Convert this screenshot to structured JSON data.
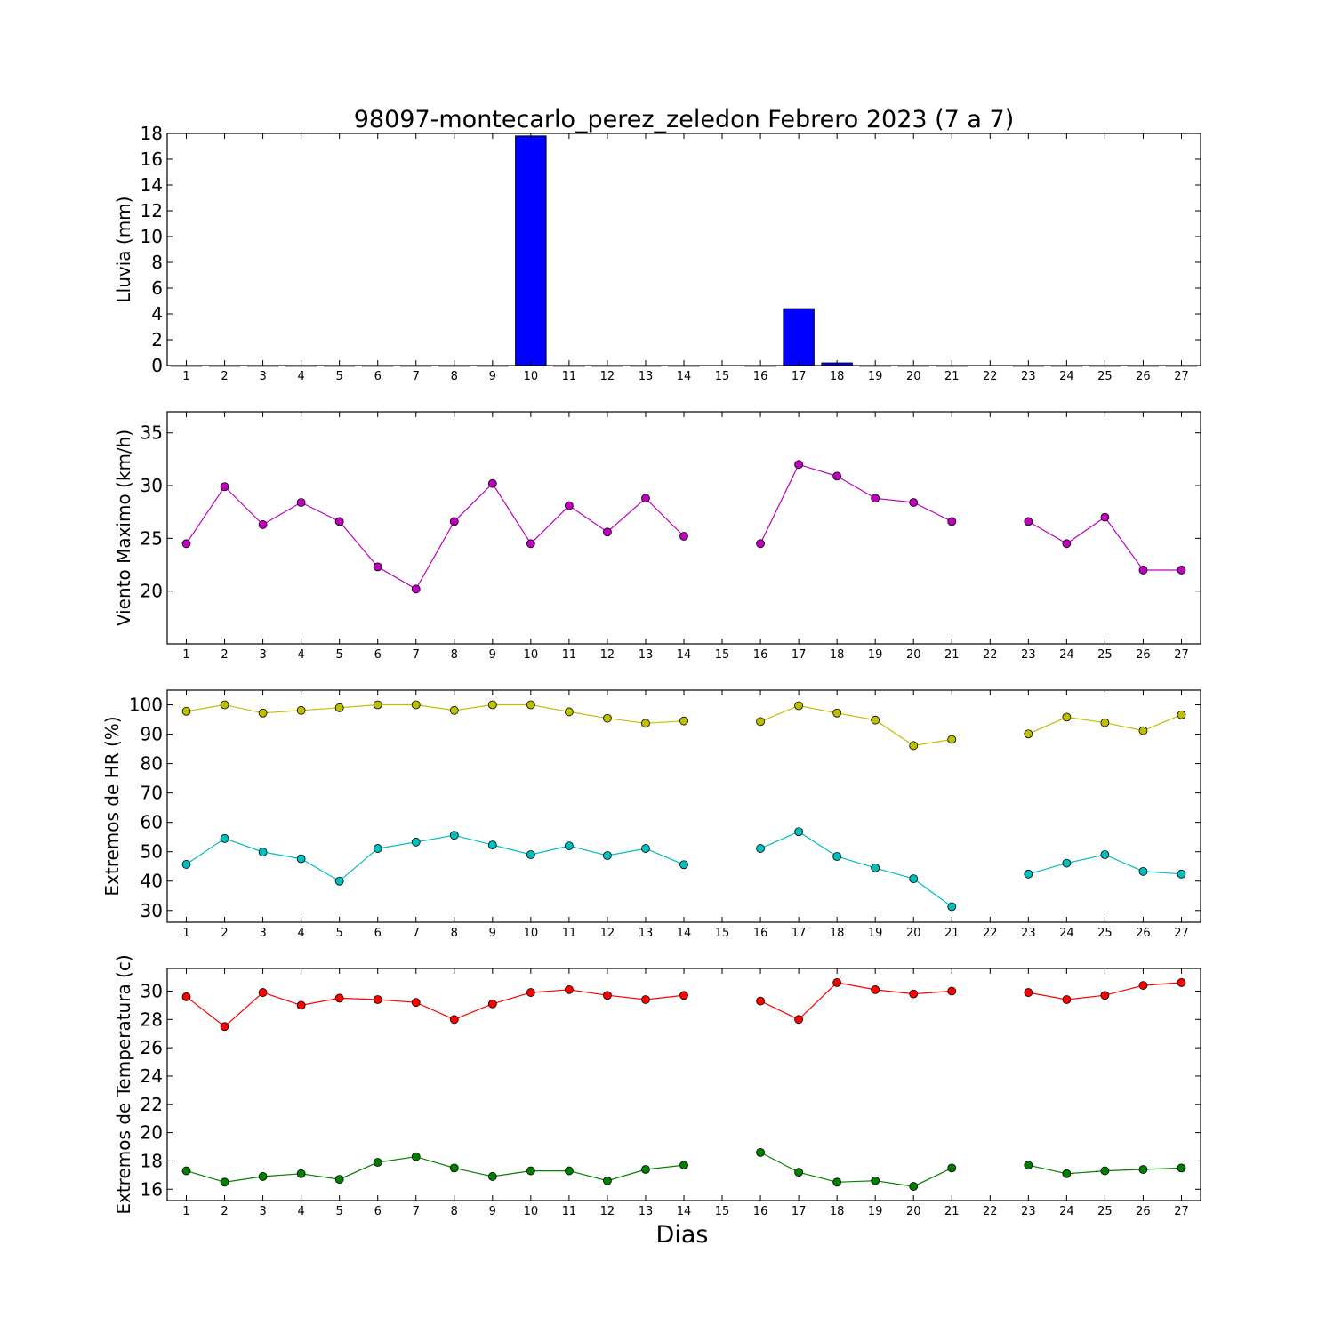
{
  "chart_data": [
    {
      "type": "bar",
      "title": "98097-montecarlo_perez_zeledon Febrero 2023  (7 a 7)",
      "ylabel": "Lluvia (mm)",
      "ylim": [
        0,
        18
      ],
      "yticks": [
        0,
        2,
        4,
        6,
        8,
        10,
        12,
        14,
        16,
        18
      ],
      "x": [
        1,
        2,
        3,
        4,
        5,
        6,
        7,
        8,
        9,
        10,
        11,
        12,
        13,
        14,
        15,
        16,
        17,
        18,
        19,
        20,
        21,
        22,
        23,
        24,
        25,
        26,
        27
      ],
      "values": [
        0,
        0,
        0,
        0,
        0,
        0,
        0,
        0,
        0,
        17.8,
        0,
        0,
        0,
        0,
        null,
        0,
        4.4,
        0.2,
        0,
        0,
        0,
        null,
        0,
        0,
        0,
        0,
        0
      ],
      "color": "#0000ff"
    },
    {
      "type": "line",
      "ylabel": "Viento Maximo (km/h)",
      "ylim": [
        15,
        37
      ],
      "yticks": [
        20,
        25,
        30,
        35
      ],
      "x": [
        1,
        2,
        3,
        4,
        5,
        6,
        7,
        8,
        9,
        10,
        11,
        12,
        13,
        14,
        15,
        16,
        17,
        18,
        19,
        20,
        21,
        22,
        23,
        24,
        25,
        26,
        27
      ],
      "series": [
        {
          "color": "#bf00bf",
          "values": [
            24.5,
            29.9,
            26.3,
            28.4,
            26.6,
            22.3,
            20.2,
            26.6,
            30.2,
            24.5,
            28.1,
            25.6,
            28.8,
            25.2,
            null,
            24.5,
            32.0,
            30.9,
            28.8,
            28.4,
            26.6,
            null,
            26.6,
            24.5,
            27.0,
            22.0,
            22.0
          ]
        }
      ]
    },
    {
      "type": "line",
      "ylabel": "Extremos de HR (%)",
      "ylim": [
        26,
        105
      ],
      "yticks": [
        30,
        40,
        50,
        60,
        70,
        80,
        90,
        100
      ],
      "x": [
        1,
        2,
        3,
        4,
        5,
        6,
        7,
        8,
        9,
        10,
        11,
        12,
        13,
        14,
        15,
        16,
        17,
        18,
        19,
        20,
        21,
        22,
        23,
        24,
        25,
        26,
        27
      ],
      "series": [
        {
          "color": "#bfbf00",
          "values": [
            97.8,
            100,
            97.2,
            98.1,
            99.0,
            100,
            100,
            98.1,
            100,
            100,
            97.6,
            95.4,
            93.7,
            94.5,
            null,
            94.3,
            99.7,
            97.2,
            94.8,
            86.1,
            88.2,
            null,
            90.1,
            95.8,
            93.9,
            91.2,
            96.6
          ]
        },
        {
          "color": "#00bfbf",
          "values": [
            45.7,
            54.5,
            49.9,
            47.6,
            40.0,
            51.1,
            53.3,
            55.6,
            52.3,
            49.0,
            52.0,
            48.7,
            51.1,
            45.6,
            null,
            51.1,
            56.8,
            48.4,
            44.5,
            40.8,
            31.3,
            null,
            42.4,
            46.1,
            49.0,
            43.3,
            42.4
          ]
        }
      ]
    },
    {
      "type": "line",
      "ylabel": "Extremos de Temperatura (c)",
      "xlabel": "Dias",
      "ylim": [
        15.2,
        31.6
      ],
      "yticks": [
        16,
        18,
        20,
        22,
        24,
        26,
        28,
        30
      ],
      "x": [
        1,
        2,
        3,
        4,
        5,
        6,
        7,
        8,
        9,
        10,
        11,
        12,
        13,
        14,
        15,
        16,
        17,
        18,
        19,
        20,
        21,
        22,
        23,
        24,
        25,
        26,
        27
      ],
      "series": [
        {
          "color": "#ff0000",
          "values": [
            29.6,
            27.5,
            29.9,
            29.0,
            29.5,
            29.4,
            29.2,
            28.0,
            29.1,
            29.9,
            30.1,
            29.7,
            29.4,
            29.7,
            null,
            29.3,
            28.0,
            30.6,
            30.1,
            29.8,
            30.0,
            null,
            29.9,
            29.4,
            29.7,
            30.4,
            30.6
          ]
        },
        {
          "color": "#008000",
          "values": [
            17.3,
            16.5,
            16.9,
            17.1,
            16.7,
            17.9,
            18.3,
            17.5,
            16.9,
            17.3,
            17.3,
            16.6,
            17.4,
            17.7,
            null,
            18.6,
            17.2,
            16.5,
            16.6,
            16.2,
            17.5,
            null,
            17.7,
            17.1,
            17.3,
            17.4,
            17.5
          ]
        }
      ]
    }
  ]
}
